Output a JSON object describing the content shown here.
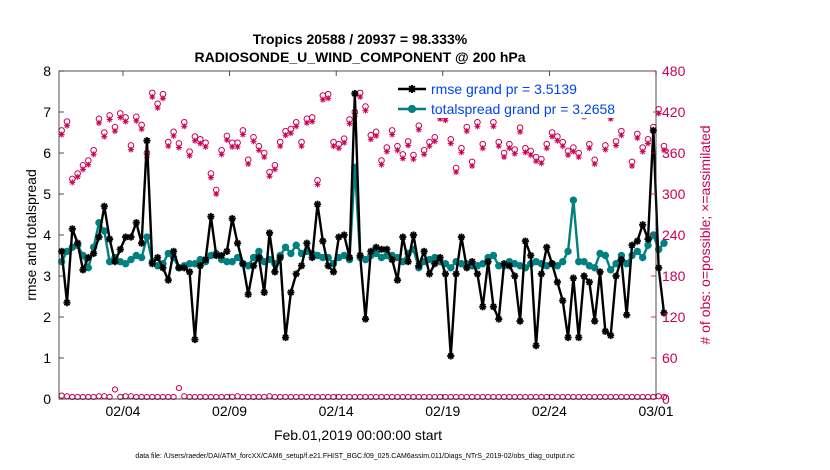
{
  "chart_data": {
    "type": "line",
    "title_line1": "Tropics 20588 / 20937 = 98.333%",
    "title_line2": "RADIOSONDE_U_WIND_COMPONENT @ 200 hPa",
    "ylabel": "rmse and totalspread",
    "y2label": "# of obs: o=possible; ×=assimilated",
    "xlabel": "Feb.01,2019 00:00:00 start",
    "footer": "data file: /Users/raeder/DAI/ATM_forcXX/CAM6_setup/f.e21.FHIST_BGC.f09_025.CAM6assim.011/Diags_NTrS_2019-02/obs_diag_output.nc",
    "x_range": [
      0,
      28
    ],
    "ylim": [
      0,
      8
    ],
    "y2lim": [
      0,
      480
    ],
    "yticks": [
      "0",
      "1",
      "2",
      "3",
      "4",
      "5",
      "6",
      "7",
      "8"
    ],
    "y2ticks": [
      "0",
      "60",
      "120",
      "180",
      "240",
      "300",
      "360",
      "420",
      "480"
    ],
    "xticks": [
      {
        "x": 3,
        "label": "02/04"
      },
      {
        "x": 8,
        "label": "02/09"
      },
      {
        "x": 13,
        "label": "02/14"
      },
      {
        "x": 18,
        "label": "02/19"
      },
      {
        "x": 23,
        "label": "02/24"
      },
      {
        "x": 28,
        "label": "03/01"
      }
    ],
    "legend": [
      {
        "label": "rmse grand pr = 3.5139",
        "color": "#000000"
      },
      {
        "label": "totalspread grand pr = 3.2658",
        "color": "#008080"
      }
    ],
    "colors": {
      "rmse": "#000000",
      "spread": "#008080",
      "obs": "#cc0055",
      "legend_text": "#0044ee"
    },
    "series_start": 0.125,
    "series_step": 0.25,
    "rmse": [
      3.6,
      2.35,
      4.15,
      3.8,
      3.15,
      3.45,
      3.55,
      3.95,
      4.7,
      3.9,
      3.35,
      3.65,
      3.95,
      3.95,
      4.3,
      3.8,
      6.3,
      3.3,
      3.45,
      3.2,
      2.9,
      3.6,
      3.2,
      3.2,
      3.1,
      1.45,
      3.25,
      3.4,
      4.45,
      3.5,
      3.5,
      3.6,
      4.4,
      3.8,
      3.3,
      2.55,
      3.25,
      3.45,
      2.6,
      4.05,
      3.1,
      3.45,
      1.5,
      2.6,
      3.05,
      3.25,
      3.8,
      3.45,
      4.75,
      3.85,
      3.25,
      3.1,
      3.95,
      4.0,
      3.45,
      7.45,
      3.5,
      1.95,
      3.6,
      3.7,
      3.65,
      3.65,
      3.4,
      2.9,
      3.95,
      3.35,
      4.0,
      3.25,
      3.6,
      3.05,
      3.3,
      3.45,
      3.05,
      1.05,
      3.05,
      3.95,
      3.2,
      3.35,
      3.05,
      2.25,
      3.35,
      2.25,
      1.95,
      3.3,
      3.25,
      3.0,
      1.9,
      3.85,
      3.5,
      1.3,
      3.05,
      3.7,
      3.3,
      2.85,
      2.4,
      1.5,
      2.95,
      1.5,
      3.0,
      2.85,
      1.9,
      3.1,
      1.65,
      1.55,
      3.0,
      3.4,
      2.05,
      3.75,
      3.85,
      4.25,
      3.9,
      6.55,
      3.2,
      2.1
    ],
    "spread": [
      3.35,
      3.6,
      3.7,
      3.75,
      3.5,
      3.2,
      3.7,
      4.3,
      4.1,
      3.35,
      3.45,
      3.35,
      3.3,
      3.4,
      3.5,
      3.45,
      3.95,
      3.35,
      3.25,
      3.3,
      3.55,
      3.45,
      3.2,
      3.25,
      3.3,
      3.3,
      3.4,
      3.35,
      3.5,
      3.55,
      3.4,
      3.35,
      3.35,
      3.45,
      3.3,
      3.25,
      3.45,
      3.6,
      3.35,
      3.4,
      3.3,
      3.5,
      3.7,
      3.55,
      3.75,
      3.55,
      3.6,
      3.55,
      3.5,
      3.45,
      3.45,
      3.3,
      3.45,
      3.5,
      3.4,
      5.65,
      3.45,
      3.4,
      3.5,
      3.55,
      3.45,
      3.5,
      3.5,
      3.45,
      3.35,
      3.55,
      3.65,
      3.2,
      3.35,
      3.4,
      3.45,
      3.35,
      3.3,
      3.2,
      3.35,
      3.3,
      3.3,
      3.25,
      3.25,
      3.3,
      3.45,
      3.5,
      3.25,
      3.25,
      3.35,
      3.3,
      3.25,
      3.2,
      3.3,
      3.35,
      3.3,
      3.25,
      3.3,
      3.25,
      3.35,
      3.6,
      4.85,
      3.35,
      3.35,
      3.25,
      3.2,
      3.55,
      3.5,
      3.15,
      3.3,
      3.5,
      3.3,
      3.5,
      3.6,
      3.45,
      3.75,
      4.0,
      3.65,
      3.8
    ],
    "obs_possible": [
      393,
      406,
      322,
      330,
      342,
      349,
      364,
      410,
      390,
      415,
      398,
      418,
      412,
      371,
      413,
      401,
      360,
      448,
      432,
      446,
      376,
      391,
      374,
      405,
      362,
      384,
      380,
      375,
      330,
      306,
      364,
      385,
      375,
      375,
      393,
      350,
      383,
      370,
      360,
      332,
      342,
      376,
      392,
      395,
      405,
      376,
      410,
      412,
      320,
      444,
      446,
      376,
      373,
      381,
      409,
      420,
      448,
      428,
      386,
      391,
      349,
      368,
      393,
      370,
      358,
      377,
      357,
      400,
      364,
      376,
      383,
      416,
      414,
      380,
      338,
      367,
      398,
      347,
      405,
      373,
      424,
      405,
      376,
      360,
      373,
      365,
      397,
      367,
      363,
      354,
      351,
      373,
      390,
      384,
      376,
      363,
      368,
      360,
      419,
      373,
      350,
      427,
      371,
      416,
      377,
      392,
      442,
      347,
      388,
      368,
      380,
      398,
      424,
      370
    ],
    "obs_assimilated": [
      387,
      400,
      317,
      325,
      336,
      343,
      358,
      404,
      384,
      409,
      392,
      412,
      406,
      365,
      407,
      395,
      354,
      442,
      426,
      440,
      370,
      385,
      368,
      399,
      356,
      378,
      374,
      369,
      324,
      300,
      358,
      379,
      369,
      369,
      387,
      344,
      377,
      364,
      354,
      326,
      336,
      370,
      386,
      389,
      399,
      370,
      404,
      406,
      314,
      438,
      440,
      370,
      367,
      375,
      403,
      414,
      442,
      422,
      380,
      385,
      343,
      362,
      387,
      364,
      352,
      371,
      351,
      394,
      358,
      370,
      377,
      410,
      408,
      374,
      332,
      361,
      392,
      341,
      399,
      367,
      418,
      399,
      370,
      354,
      367,
      359,
      391,
      361,
      357,
      348,
      345,
      367,
      384,
      378,
      370,
      357,
      362,
      354,
      413,
      367,
      344,
      421,
      365,
      410,
      371,
      386,
      436,
      341,
      382,
      362,
      374,
      392,
      418,
      364
    ],
    "rejected": [
      5,
      4,
      3,
      3,
      3,
      3,
      3,
      4,
      4,
      3,
      14,
      3,
      4,
      4,
      3,
      3,
      3,
      3,
      3,
      3,
      3,
      3,
      16,
      4,
      3,
      3,
      3,
      3,
      3,
      3,
      3,
      3,
      3,
      4,
      3,
      3,
      3,
      3,
      3,
      4,
      3,
      3,
      3,
      3,
      3,
      3,
      3,
      3,
      3,
      3,
      3,
      3,
      3,
      3,
      3,
      3,
      3,
      3,
      3,
      3,
      3,
      3,
      3,
      3,
      3,
      3,
      3,
      3,
      3,
      3,
      3,
      3,
      3,
      3,
      3,
      3,
      3,
      3,
      3,
      3,
      3,
      3,
      3,
      3,
      3,
      3,
      3,
      3,
      3,
      3,
      3,
      3,
      3,
      3,
      3,
      3,
      3,
      3,
      3,
      3,
      3,
      3,
      3,
      3,
      3,
      3,
      3,
      3,
      3,
      3,
      3,
      3,
      4,
      3
    ]
  }
}
